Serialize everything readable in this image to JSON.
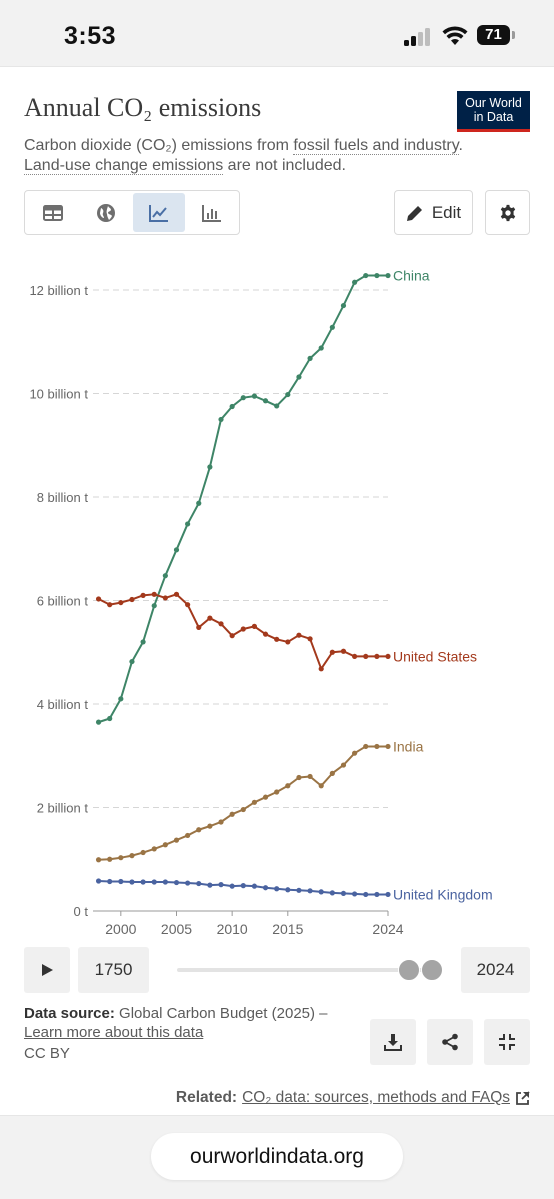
{
  "status_bar": {
    "time": "3:53",
    "battery": "71"
  },
  "header": {
    "title": "Annual CO₂ emissions",
    "logo_line1": "Our World",
    "logo_line2": "in Data",
    "subtitle_prefix": "Carbon dioxide (CO₂) emissions from ",
    "subtitle_link1": "fossil fuels and industry",
    "subtitle_mid": ". ",
    "subtitle_link2": "Land-use change emissions",
    "subtitle_suffix": " are not included."
  },
  "toolbar": {
    "tabs": [
      {
        "name": "table",
        "icon": "table-icon",
        "active": false
      },
      {
        "name": "map",
        "icon": "globe-icon",
        "active": false
      },
      {
        "name": "line",
        "icon": "line-chart-icon",
        "active": true
      },
      {
        "name": "bar",
        "icon": "bar-chart-icon",
        "active": false
      }
    ],
    "edit_label": "Edit"
  },
  "colors": {
    "china": "#3e8567",
    "united_states": "#a3391c",
    "india": "#9a7445",
    "united_kingdom": "#4a63a0",
    "grid": "#d6d6d6",
    "axis_text": "#666666"
  },
  "chart_data": {
    "type": "line",
    "xlim": [
      1997.5,
      2024
    ],
    "ylim": [
      0,
      12.6
    ],
    "unit": "billion t",
    "y_ticks": [
      {
        "value": 0,
        "label": "0 t"
      },
      {
        "value": 2,
        "label": "2 billion t"
      },
      {
        "value": 4,
        "label": "4 billion t"
      },
      {
        "value": 6,
        "label": "6 billion t"
      },
      {
        "value": 8,
        "label": "8 billion t"
      },
      {
        "value": 10,
        "label": "10 billion t"
      },
      {
        "value": 12,
        "label": "12 billion t"
      }
    ],
    "x_ticks": [
      {
        "value": 2000,
        "label": "2000"
      },
      {
        "value": 2005,
        "label": "2005"
      },
      {
        "value": 2010,
        "label": "2010"
      },
      {
        "value": 2015,
        "label": "2015"
      },
      {
        "value": 2024,
        "label": "2024"
      }
    ],
    "grid": true,
    "legend": "inline labels at line ends",
    "x": [
      1998,
      1999,
      2000,
      2001,
      2002,
      2003,
      2004,
      2005,
      2006,
      2007,
      2008,
      2009,
      2010,
      2011,
      2012,
      2013,
      2014,
      2015,
      2016,
      2017,
      2018,
      2019,
      2020,
      2021,
      2022,
      2023,
      2024
    ],
    "series": [
      {
        "name": "China",
        "color_key": "china",
        "values": [
          3.65,
          3.72,
          4.1,
          4.82,
          5.2,
          5.9,
          6.48,
          6.98,
          7.48,
          7.88,
          8.58,
          9.5,
          9.75,
          9.92,
          9.95,
          9.86,
          9.76,
          9.98,
          10.32,
          10.68,
          10.88,
          11.28,
          11.7,
          12.15,
          12.28,
          12.28,
          12.28
        ]
      },
      {
        "name": "United States",
        "color_key": "united_states",
        "values": [
          6.03,
          5.92,
          5.96,
          6.02,
          6.1,
          6.12,
          6.05,
          6.12,
          5.92,
          5.48,
          5.66,
          5.55,
          5.32,
          5.45,
          5.5,
          5.35,
          5.25,
          5.2,
          5.33,
          5.26,
          4.68,
          5.0,
          5.02,
          4.92,
          4.92,
          4.92,
          4.92
        ]
      },
      {
        "name": "India",
        "color_key": "india",
        "values": [
          0.99,
          1.0,
          1.03,
          1.07,
          1.13,
          1.2,
          1.28,
          1.37,
          1.46,
          1.57,
          1.64,
          1.72,
          1.87,
          1.96,
          2.1,
          2.2,
          2.3,
          2.42,
          2.58,
          2.6,
          2.42,
          2.66,
          2.82,
          3.05,
          3.18,
          3.18,
          3.18
        ]
      },
      {
        "name": "United Kingdom",
        "color_key": "united_kingdom",
        "values": [
          0.58,
          0.57,
          0.57,
          0.56,
          0.56,
          0.56,
          0.56,
          0.55,
          0.54,
          0.53,
          0.5,
          0.51,
          0.48,
          0.49,
          0.48,
          0.45,
          0.43,
          0.41,
          0.4,
          0.39,
          0.37,
          0.35,
          0.34,
          0.33,
          0.32,
          0.32,
          0.32
        ]
      }
    ]
  },
  "timeline": {
    "start_year": "1750",
    "end_year": "2024"
  },
  "source": {
    "label": "Data source:",
    "text": " Global Carbon Budget (2025) – ",
    "link": "Learn more about this data",
    "license": "CC BY"
  },
  "related": {
    "label": "Related:",
    "link": "CO₂ data: sources, methods and FAQs"
  },
  "browser": {
    "url": "ourworldindata.org"
  }
}
